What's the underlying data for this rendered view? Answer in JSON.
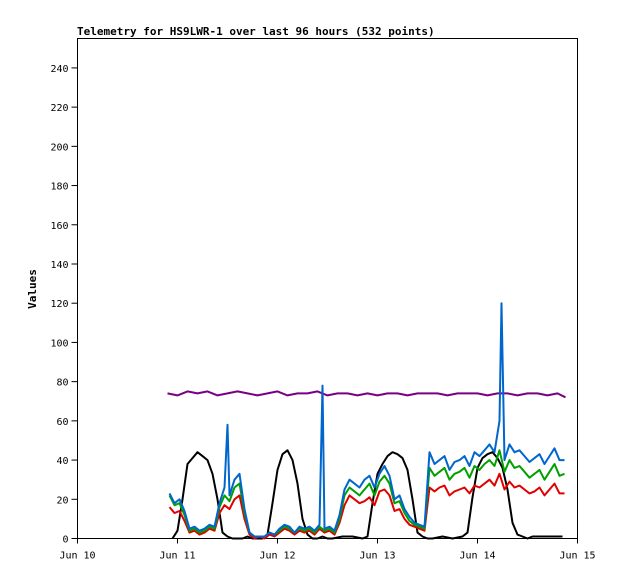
{
  "chart_data": {
    "type": "line",
    "title": "Telemetry for HS9LWR-1 over last 96 hours (532 points)",
    "xlabel": "",
    "ylabel": "Values",
    "x_ticks": [
      "Jun 10",
      "Jun 11",
      "Jun 12",
      "Jun 13",
      "Jun 14",
      "Jun 15"
    ],
    "xlim": [
      10,
      15
    ],
    "ylim": [
      0,
      255
    ],
    "y_ticks": [
      0,
      20,
      40,
      60,
      80,
      100,
      120,
      140,
      160,
      180,
      200,
      220,
      240
    ],
    "grid": false,
    "legend": "none",
    "series": [
      {
        "color": "#000000",
        "x": [
          10.95,
          11.0,
          11.05,
          11.1,
          11.15,
          11.2,
          11.25,
          11.3,
          11.35,
          11.4,
          11.45,
          11.5,
          11.55,
          11.6,
          11.65,
          11.7,
          11.75,
          11.85,
          11.9,
          11.95,
          12.0,
          12.05,
          12.1,
          12.15,
          12.2,
          12.25,
          12.3,
          12.35,
          12.4,
          12.45,
          12.5,
          12.55,
          12.65,
          12.75,
          12.85,
          12.9,
          12.95,
          13.0,
          13.05,
          13.1,
          13.15,
          13.2,
          13.25,
          13.3,
          13.35,
          13.4,
          13.45,
          13.5,
          13.55,
          13.65,
          13.75,
          13.85,
          13.9,
          13.95,
          14.0,
          14.05,
          14.1,
          14.15,
          14.2,
          14.25,
          14.3,
          14.35,
          14.4,
          14.45,
          14.5,
          14.55,
          14.65,
          14.75,
          14.85
        ],
        "values": [
          0,
          4,
          20,
          38,
          41,
          44,
          42,
          40,
          33,
          20,
          3,
          1,
          0,
          0,
          0,
          1,
          0,
          0,
          2,
          18,
          35,
          43,
          45,
          40,
          28,
          10,
          2,
          0,
          0,
          1,
          0,
          0,
          1,
          1,
          0,
          1,
          18,
          33,
          38,
          42,
          44,
          43,
          41,
          35,
          20,
          3,
          1,
          0,
          0,
          1,
          0,
          1,
          3,
          21,
          36,
          41,
          43,
          44,
          41,
          36,
          25,
          8,
          2,
          1,
          0,
          1,
          1,
          1,
          1
        ]
      },
      {
        "color": "#7a0083",
        "x": [
          10.9,
          11.0,
          11.1,
          11.2,
          11.3,
          11.4,
          11.5,
          11.6,
          11.7,
          11.8,
          11.9,
          12.0,
          12.1,
          12.2,
          12.3,
          12.4,
          12.5,
          12.6,
          12.7,
          12.8,
          12.9,
          13.0,
          13.1,
          13.2,
          13.3,
          13.4,
          13.5,
          13.6,
          13.7,
          13.8,
          13.9,
          14.0,
          14.1,
          14.2,
          14.3,
          14.4,
          14.5,
          14.6,
          14.7,
          14.8,
          14.88
        ],
        "values": [
          74,
          73,
          75,
          74,
          75,
          73,
          74,
          75,
          74,
          73,
          74,
          75,
          73,
          74,
          74,
          75,
          73,
          74,
          74,
          73,
          74,
          73,
          74,
          74,
          73,
          74,
          74,
          74,
          73,
          74,
          74,
          74,
          73,
          74,
          74,
          73,
          74,
          74,
          73,
          74,
          72
        ]
      },
      {
        "color": "#e00000",
        "x": [
          10.92,
          10.97,
          11.02,
          11.07,
          11.12,
          11.17,
          11.22,
          11.27,
          11.32,
          11.37,
          11.42,
          11.47,
          11.52,
          11.57,
          11.62,
          11.67,
          11.72,
          11.77,
          11.82,
          11.87,
          11.92,
          11.97,
          12.02,
          12.07,
          12.12,
          12.17,
          12.22,
          12.27,
          12.32,
          12.37,
          12.42,
          12.47,
          12.52,
          12.57,
          12.62,
          12.67,
          12.72,
          12.77,
          12.82,
          12.87,
          12.92,
          12.97,
          13.02,
          13.07,
          13.12,
          13.17,
          13.22,
          13.27,
          13.32,
          13.37,
          13.42,
          13.47,
          13.52,
          13.57,
          13.62,
          13.67,
          13.72,
          13.77,
          13.82,
          13.87,
          13.92,
          13.97,
          14.02,
          14.07,
          14.12,
          14.17,
          14.22,
          14.27,
          14.32,
          14.37,
          14.42,
          14.47,
          14.52,
          14.57,
          14.62,
          14.67,
          14.72,
          14.77,
          14.82,
          14.87
        ],
        "values": [
          16,
          13,
          14,
          9,
          3,
          4,
          2,
          3,
          5,
          4,
          13,
          17,
          15,
          20,
          22,
          10,
          2,
          0,
          1,
          0,
          2,
          1,
          3,
          5,
          4,
          2,
          4,
          3,
          4,
          2,
          5,
          3,
          4,
          2,
          8,
          17,
          22,
          20,
          18,
          19,
          21,
          17,
          24,
          25,
          22,
          14,
          15,
          10,
          7,
          6,
          5,
          4,
          26,
          24,
          26,
          27,
          22,
          24,
          25,
          26,
          23,
          27,
          26,
          28,
          30,
          27,
          33,
          25,
          29,
          26,
          27,
          25,
          23,
          24,
          26,
          22,
          25,
          28,
          23,
          23
        ]
      },
      {
        "color": "#00a000",
        "x": [
          10.92,
          10.97,
          11.02,
          11.07,
          11.12,
          11.17,
          11.22,
          11.27,
          11.32,
          11.37,
          11.42,
          11.47,
          11.52,
          11.57,
          11.62,
          11.67,
          11.72,
          11.77,
          11.82,
          11.87,
          11.92,
          11.97,
          12.02,
          12.07,
          12.12,
          12.17,
          12.22,
          12.27,
          12.32,
          12.37,
          12.42,
          12.47,
          12.52,
          12.57,
          12.62,
          12.67,
          12.72,
          12.77,
          12.82,
          12.87,
          12.92,
          12.97,
          13.02,
          13.07,
          13.12,
          13.17,
          13.22,
          13.27,
          13.32,
          13.37,
          13.42,
          13.47,
          13.52,
          13.57,
          13.62,
          13.67,
          13.72,
          13.77,
          13.82,
          13.87,
          13.92,
          13.97,
          14.02,
          14.07,
          14.12,
          14.17,
          14.22,
          14.27,
          14.32,
          14.37,
          14.42,
          14.47,
          14.52,
          14.57,
          14.62,
          14.67,
          14.72,
          14.77,
          14.82,
          14.87
        ],
        "values": [
          22,
          17,
          18,
          12,
          4,
          5,
          3,
          4,
          6,
          5,
          16,
          22,
          19,
          26,
          28,
          13,
          3,
          1,
          1,
          1,
          3,
          2,
          4,
          6,
          5,
          3,
          5,
          4,
          5,
          3,
          6,
          4,
          5,
          3,
          10,
          22,
          26,
          24,
          22,
          25,
          28,
          22,
          29,
          32,
          28,
          18,
          19,
          13,
          9,
          7,
          6,
          5,
          36,
          32,
          34,
          36,
          30,
          33,
          34,
          36,
          31,
          37,
          35,
          38,
          40,
          37,
          45,
          34,
          40,
          36,
          37,
          34,
          31,
          33,
          35,
          30,
          34,
          38,
          32,
          33
        ]
      },
      {
        "color": "#0066cc",
        "x": [
          10.92,
          10.97,
          11.02,
          11.07,
          11.12,
          11.17,
          11.22,
          11.27,
          11.32,
          11.37,
          11.42,
          11.47,
          11.5,
          11.52,
          11.57,
          11.62,
          11.67,
          11.72,
          11.77,
          11.82,
          11.87,
          11.92,
          11.97,
          12.02,
          12.07,
          12.12,
          12.17,
          12.22,
          12.27,
          12.32,
          12.37,
          12.42,
          12.45,
          12.47,
          12.52,
          12.57,
          12.62,
          12.67,
          12.72,
          12.77,
          12.82,
          12.87,
          12.92,
          12.97,
          13.02,
          13.07,
          13.12,
          13.17,
          13.22,
          13.27,
          13.32,
          13.37,
          13.42,
          13.47,
          13.52,
          13.57,
          13.62,
          13.67,
          13.72,
          13.77,
          13.82,
          13.87,
          13.92,
          13.97,
          14.02,
          14.07,
          14.12,
          14.17,
          14.22,
          14.24,
          14.27,
          14.32,
          14.37,
          14.42,
          14.47,
          14.52,
          14.57,
          14.62,
          14.67,
          14.72,
          14.77,
          14.82,
          14.87
        ],
        "values": [
          23,
          18,
          20,
          14,
          5,
          6,
          4,
          5,
          7,
          6,
          18,
          26,
          58,
          22,
          30,
          33,
          15,
          3,
          1,
          1,
          1,
          3,
          2,
          5,
          7,
          6,
          3,
          6,
          5,
          6,
          4,
          7,
          78,
          5,
          6,
          4,
          12,
          25,
          30,
          28,
          26,
          30,
          32,
          26,
          33,
          37,
          32,
          20,
          22,
          15,
          11,
          8,
          7,
          6,
          44,
          38,
          40,
          42,
          35,
          39,
          40,
          42,
          37,
          44,
          42,
          45,
          48,
          44,
          60,
          120,
          40,
          48,
          44,
          45,
          42,
          39,
          41,
          43,
          38,
          42,
          46,
          40,
          40
        ]
      }
    ]
  }
}
